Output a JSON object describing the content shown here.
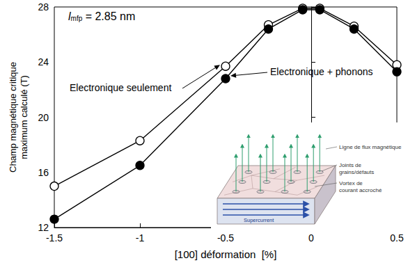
{
  "chart_data": {
    "type": "line",
    "x_label": "[100] déformation  [%]",
    "y_label": "Champ magnétique critique\nmaximum calculé (T)",
    "xlim": [
      -1.5,
      0.5
    ],
    "xticks": [
      -1.5,
      -1,
      -0.5,
      0,
      0.5
    ],
    "ylim": [
      12,
      28
    ],
    "yticks": [
      12,
      16,
      20,
      24,
      28
    ],
    "grid": false,
    "x": [
      -1.5,
      -1,
      -0.5,
      -0.25,
      -0.05,
      0.05,
      0.25,
      0.5
    ],
    "series": [
      {
        "name": "Electronique seulement",
        "color": "#000000",
        "marker": "open_circle",
        "values": [
          15.0,
          18.3,
          23.7,
          26.7,
          27.9,
          27.9,
          26.6,
          23.8
        ]
      },
      {
        "name": "Electronique + phonons",
        "color": "#000000",
        "marker": "filled_circle",
        "values": [
          12.6,
          16.5,
          22.8,
          26.4,
          27.8,
          27.8,
          26.4,
          23.3
        ]
      }
    ],
    "annotation": {
      "symbol": "l",
      "subscript": "mfp",
      "text": " = 2.85 nm"
    },
    "inset": {
      "labels": [
        "Ligne de flux magnétique",
        "Joints de\ngrains/défauts",
        "Vortex de\ncourant accroché"
      ],
      "current_label": "Supercurrent"
    }
  }
}
